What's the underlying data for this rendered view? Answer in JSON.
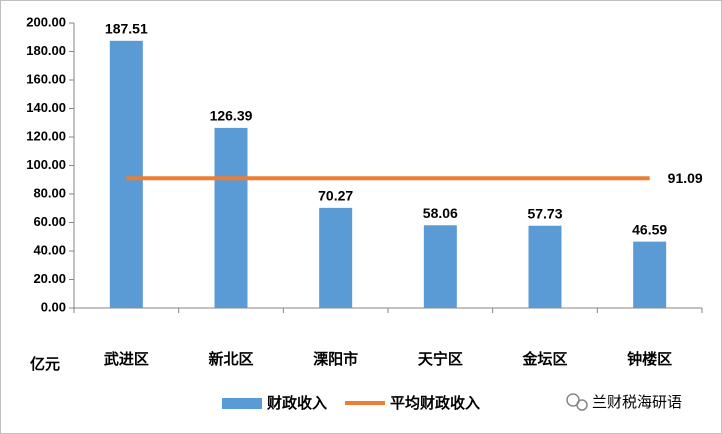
{
  "chart_data": {
    "type": "bar",
    "categories": [
      "武进区",
      "新北区",
      "溧阳市",
      "天宁区",
      "金坛区",
      "钟楼区"
    ],
    "series": [
      {
        "name": "财政收入",
        "type": "bar",
        "color": "#5b9bd5",
        "values": [
          187.51,
          126.39,
          70.27,
          58.06,
          57.73,
          46.59
        ]
      },
      {
        "name": "平均财政收入",
        "type": "line",
        "color": "#ed7d31",
        "values": [
          91.09,
          91.09,
          91.09,
          91.09,
          91.09,
          91.09
        ]
      }
    ],
    "y_unit": "亿元",
    "ylim": [
      0,
      200
    ],
    "yticks": [
      {
        "value": 0,
        "label": "0.00"
      },
      {
        "value": 20,
        "label": "20.00"
      },
      {
        "value": 40,
        "label": "40.00"
      },
      {
        "value": 60,
        "label": "60.00"
      },
      {
        "value": 80,
        "label": "80.00"
      },
      {
        "value": 100,
        "label": "100.00"
      },
      {
        "value": 120,
        "label": "120.00"
      },
      {
        "value": 140,
        "label": "140.00"
      },
      {
        "value": 160,
        "label": "160.00"
      },
      {
        "value": 180,
        "label": "180.00"
      },
      {
        "value": 200,
        "label": "200.00"
      }
    ],
    "watermark": "兰财税海研语"
  }
}
